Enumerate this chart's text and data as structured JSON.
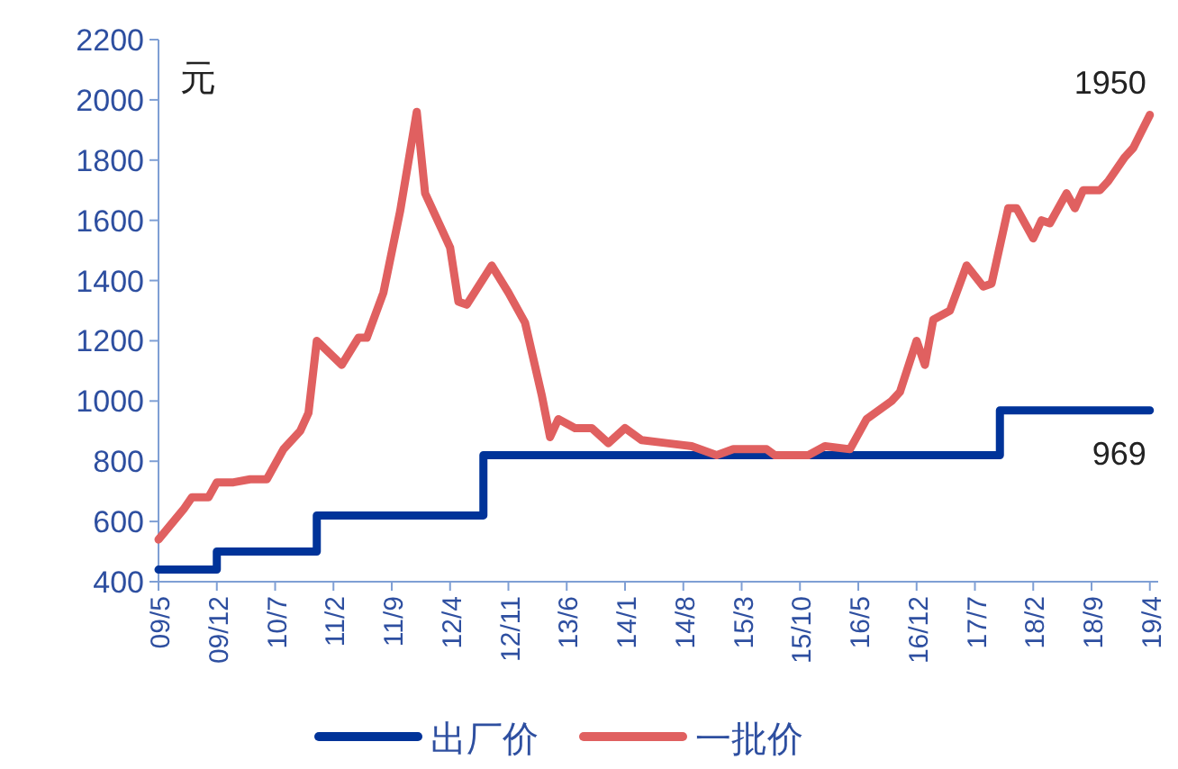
{
  "chart_data": {
    "type": "line",
    "ylabel": "元",
    "legend": "bottom",
    "xlim": [
      "2009-05",
      "2019-05"
    ],
    "ylim": [
      400,
      2200
    ],
    "yticks": [
      400,
      600,
      800,
      1000,
      1200,
      1400,
      1600,
      1800,
      2000,
      2200
    ],
    "xticks": [
      {
        "value": "2009-05",
        "label": "09/5"
      },
      {
        "value": "2009-12",
        "label": "09/12"
      },
      {
        "value": "2010-07",
        "label": "10/7"
      },
      {
        "value": "2011-02",
        "label": "11/2"
      },
      {
        "value": "2011-09",
        "label": "11/9"
      },
      {
        "value": "2012-04",
        "label": "12/4"
      },
      {
        "value": "2012-11",
        "label": "12/11"
      },
      {
        "value": "2013-06",
        "label": "13/6"
      },
      {
        "value": "2014-01",
        "label": "14/1"
      },
      {
        "value": "2014-08",
        "label": "14/8"
      },
      {
        "value": "2015-03",
        "label": "15/3"
      },
      {
        "value": "2015-10",
        "label": "15/10"
      },
      {
        "value": "2016-05",
        "label": "16/5"
      },
      {
        "value": "2016-12",
        "label": "16/12"
      },
      {
        "value": "2017-07",
        "label": "17/7"
      },
      {
        "value": "2018-02",
        "label": "18/2"
      },
      {
        "value": "2018-09",
        "label": "18/9"
      },
      {
        "value": "2019-04",
        "label": "19/4"
      }
    ],
    "series": [
      {
        "name": "出厂价",
        "type": "step",
        "color": "#003399",
        "x": [
          "2009-05",
          "2009-12",
          "2010-12",
          "2012-08",
          "2017-10",
          "2019-04"
        ],
        "values": [
          440,
          500,
          620,
          820,
          969,
          969
        ]
      },
      {
        "name": "一批价",
        "color": "#e06060",
        "x": [
          "2009-05",
          "2009-08",
          "2009-09",
          "2009-11",
          "2009-12",
          "2010-02",
          "2010-04",
          "2010-06",
          "2010-08",
          "2010-10",
          "2010-11",
          "2010-12",
          "2011-03",
          "2011-05",
          "2011-06",
          "2011-08",
          "2011-10",
          "2011-12",
          "2012-01",
          "2012-04",
          "2012-05",
          "2012-06",
          "2012-09",
          "2012-11",
          "2013-01",
          "2013-03",
          "2013-04",
          "2013-05",
          "2013-07",
          "2013-09",
          "2013-11",
          "2014-01",
          "2014-03",
          "2014-06",
          "2014-09",
          "2014-12",
          "2015-02",
          "2015-06",
          "2015-07",
          "2015-11",
          "2016-01",
          "2016-04",
          "2016-06",
          "2016-09",
          "2016-10",
          "2016-12",
          "2017-01",
          "2017-02",
          "2017-04",
          "2017-06",
          "2017-08",
          "2017-09",
          "2017-11",
          "2017-12",
          "2018-02",
          "2018-03",
          "2018-04",
          "2018-06",
          "2018-07",
          "2018-08",
          "2018-10",
          "2018-11",
          "2019-01",
          "2019-02",
          "2019-04"
        ],
        "values": [
          540,
          640,
          680,
          680,
          730,
          730,
          740,
          740,
          840,
          900,
          960,
          1200,
          1120,
          1210,
          1210,
          1360,
          1630,
          1960,
          1690,
          1510,
          1330,
          1320,
          1450,
          1360,
          1260,
          1020,
          880,
          940,
          910,
          910,
          860,
          910,
          870,
          860,
          850,
          820,
          840,
          840,
          820,
          820,
          850,
          840,
          940,
          1000,
          1030,
          1200,
          1120,
          1270,
          1300,
          1450,
          1380,
          1390,
          1640,
          1640,
          1540,
          1600,
          1590,
          1690,
          1640,
          1700,
          1700,
          1730,
          1810,
          1840,
          1950
        ]
      }
    ],
    "annotations": [
      {
        "text": "1950",
        "x": "2019-04",
        "y": 1950
      },
      {
        "text": "969",
        "x": "2019-04",
        "y": 969
      }
    ]
  }
}
